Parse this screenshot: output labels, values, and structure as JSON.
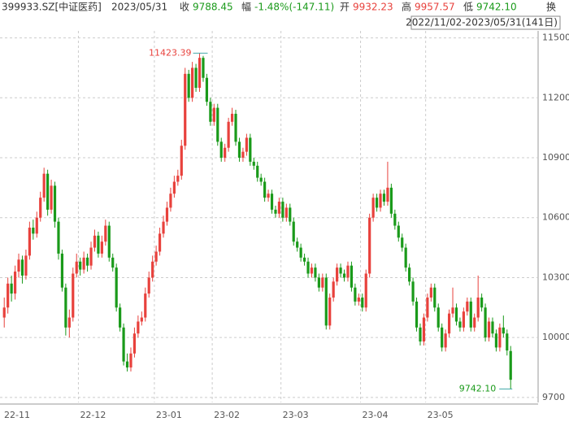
{
  "header": {
    "code": "399933.SZ[中证医药]",
    "date": "2023/05/31",
    "close_label": "收",
    "close": "9788.45",
    "change_label": "幅",
    "change": "-1.48%(-147.11)",
    "open_label": "开",
    "open": "9932.23",
    "high_label": "高",
    "high": "9957.57",
    "low_label": "低",
    "low": "9742.10",
    "turnover_label": "换",
    "range": "2022/11/02-2023/05/31(141日)"
  },
  "chart_data": {
    "type": "candlestick",
    "up_color": "#e8413c",
    "down_color": "#1a9a1a",
    "grid": true,
    "ylim": [
      9675,
      11535
    ],
    "yticks": [
      9700,
      10000,
      10300,
      10600,
      10900,
      11200,
      11500
    ],
    "annotations": {
      "max": "11423.39",
      "min": "9742.10"
    },
    "categories": [
      "22-11",
      null,
      null,
      null,
      null,
      null,
      null,
      null,
      null,
      null,
      null,
      null,
      null,
      null,
      null,
      null,
      null,
      null,
      null,
      null,
      null,
      "22-12",
      null,
      null,
      null,
      null,
      null,
      null,
      null,
      null,
      null,
      null,
      null,
      null,
      null,
      null,
      null,
      null,
      null,
      null,
      null,
      null,
      "23-01",
      null,
      null,
      null,
      null,
      null,
      null,
      null,
      null,
      null,
      null,
      null,
      null,
      null,
      null,
      null,
      "23-02",
      null,
      null,
      null,
      null,
      null,
      null,
      null,
      null,
      null,
      null,
      null,
      null,
      null,
      null,
      null,
      null,
      null,
      null,
      "23-03",
      null,
      null,
      null,
      null,
      null,
      null,
      null,
      null,
      null,
      null,
      null,
      null,
      null,
      null,
      null,
      null,
      null,
      null,
      null,
      null,
      null,
      "23-04",
      null,
      null,
      null,
      null,
      null,
      null,
      null,
      null,
      null,
      null,
      null,
      null,
      null,
      null,
      null,
      null,
      null,
      "23-05",
      null,
      null,
      null,
      null,
      null,
      null,
      null,
      null,
      null,
      null,
      null,
      null,
      null,
      null,
      null,
      null,
      null,
      null
    ],
    "ohlc": [
      [
        10100,
        10200,
        10050,
        10150
      ],
      [
        10150,
        10300,
        10120,
        10270
      ],
      [
        10270,
        10310,
        10180,
        10220
      ],
      [
        10220,
        10360,
        10190,
        10330
      ],
      [
        10330,
        10420,
        10300,
        10390
      ],
      [
        10390,
        10410,
        10270,
        10310
      ],
      [
        10310,
        10440,
        10290,
        10410
      ],
      [
        10410,
        10580,
        10390,
        10550
      ],
      [
        10550,
        10590,
        10490,
        10520
      ],
      [
        10520,
        10630,
        10500,
        10600
      ],
      [
        10600,
        10730,
        10580,
        10700
      ],
      [
        10700,
        10850,
        10680,
        10820
      ],
      [
        10820,
        10840,
        10610,
        10640
      ],
      [
        10640,
        10790,
        10620,
        10760
      ],
      [
        10760,
        10780,
        10550,
        10580
      ],
      [
        10580,
        10600,
        10390,
        10420
      ],
      [
        10420,
        10440,
        10230,
        10250
      ],
      [
        10250,
        10270,
        10010,
        10050
      ],
      [
        10050,
        10140,
        10000,
        10100
      ],
      [
        10100,
        10350,
        10080,
        10320
      ],
      [
        10320,
        10420,
        10300,
        10380
      ],
      [
        10380,
        10400,
        10310,
        10340
      ],
      [
        10340,
        10430,
        10320,
        10400
      ],
      [
        10400,
        10420,
        10330,
        10360
      ],
      [
        10360,
        10480,
        10340,
        10450
      ],
      [
        10450,
        10540,
        10430,
        10510
      ],
      [
        10510,
        10530,
        10400,
        10420
      ],
      [
        10420,
        10510,
        10400,
        10480
      ],
      [
        10480,
        10590,
        10460,
        10560
      ],
      [
        10560,
        10580,
        10380,
        10400
      ],
      [
        10400,
        10420,
        10330,
        10350
      ],
      [
        10350,
        10370,
        10130,
        10150
      ],
      [
        10150,
        10170,
        10030,
        10050
      ],
      [
        10050,
        10070,
        9860,
        9880
      ],
      [
        9880,
        9920,
        9830,
        9850
      ],
      [
        9850,
        9950,
        9830,
        9920
      ],
      [
        9920,
        10050,
        9900,
        10020
      ],
      [
        10020,
        10110,
        10000,
        10080
      ],
      [
        10080,
        10130,
        10060,
        10100
      ],
      [
        10100,
        10250,
        10080,
        10220
      ],
      [
        10220,
        10330,
        10200,
        10300
      ],
      [
        10300,
        10410,
        10280,
        10380
      ],
      [
        10380,
        10460,
        10360,
        10430
      ],
      [
        10430,
        10550,
        10410,
        10520
      ],
      [
        10520,
        10610,
        10500,
        10580
      ],
      [
        10580,
        10680,
        10560,
        10650
      ],
      [
        10650,
        10750,
        10630,
        10720
      ],
      [
        10720,
        10810,
        10700,
        10780
      ],
      [
        10780,
        10840,
        10760,
        10810
      ],
      [
        10810,
        10990,
        10790,
        10960
      ],
      [
        10960,
        11350,
        10940,
        11320
      ],
      [
        11320,
        11340,
        11180,
        11200
      ],
      [
        11200,
        11380,
        11180,
        11350
      ],
      [
        11350,
        11370,
        11230,
        11250
      ],
      [
        11250,
        11423.39,
        11230,
        11400
      ],
      [
        11400,
        11410,
        11280,
        11300
      ],
      [
        11300,
        11320,
        11160,
        11180
      ],
      [
        11180,
        11200,
        11060,
        11080
      ],
      [
        11080,
        11170,
        11060,
        11150
      ],
      [
        11150,
        11170,
        10960,
        10980
      ],
      [
        10980,
        11000,
        10880,
        10900
      ],
      [
        10900,
        10970,
        10880,
        10950
      ],
      [
        10950,
        11100,
        10930,
        11080
      ],
      [
        11080,
        11150,
        11060,
        11120
      ],
      [
        11120,
        11140,
        10960,
        10980
      ],
      [
        10980,
        11000,
        10880,
        10900
      ],
      [
        10900,
        10950,
        10880,
        10930
      ],
      [
        10930,
        11020,
        10910,
        11000
      ],
      [
        11000,
        11020,
        10860,
        10880
      ],
      [
        10880,
        10900,
        10840,
        10860
      ],
      [
        10860,
        10880,
        10780,
        10800
      ],
      [
        10800,
        10820,
        10760,
        10780
      ],
      [
        10780,
        10800,
        10680,
        10700
      ],
      [
        10700,
        10740,
        10680,
        10720
      ],
      [
        10720,
        10740,
        10620,
        10640
      ],
      [
        10640,
        10660,
        10600,
        10620
      ],
      [
        10620,
        10700,
        10600,
        10680
      ],
      [
        10680,
        10700,
        10580,
        10600
      ],
      [
        10600,
        10670,
        10580,
        10650
      ],
      [
        10650,
        10670,
        10560,
        10580
      ],
      [
        10580,
        10600,
        10460,
        10480
      ],
      [
        10480,
        10500,
        10430,
        10450
      ],
      [
        10450,
        10470,
        10380,
        10400
      ],
      [
        10400,
        10420,
        10360,
        10380
      ],
      [
        10380,
        10400,
        10300,
        10320
      ],
      [
        10320,
        10370,
        10300,
        10350
      ],
      [
        10350,
        10370,
        10280,
        10300
      ],
      [
        10300,
        10320,
        10230,
        10250
      ],
      [
        10250,
        10320,
        10230,
        10300
      ],
      [
        10300,
        10320,
        10040,
        10060
      ],
      [
        10060,
        10220,
        10040,
        10200
      ],
      [
        10200,
        10300,
        10180,
        10280
      ],
      [
        10280,
        10370,
        10260,
        10350
      ],
      [
        10350,
        10370,
        10300,
        10320
      ],
      [
        10320,
        10340,
        10280,
        10300
      ],
      [
        10300,
        10380,
        10280,
        10360
      ],
      [
        10360,
        10380,
        10230,
        10250
      ],
      [
        10250,
        10270,
        10160,
        10180
      ],
      [
        10180,
        10220,
        10160,
        10200
      ],
      [
        10200,
        10220,
        10130,
        10150
      ],
      [
        10150,
        10340,
        10130,
        10320
      ],
      [
        10320,
        10620,
        10300,
        10600
      ],
      [
        10600,
        10720,
        10580,
        10700
      ],
      [
        10700,
        10720,
        10630,
        10650
      ],
      [
        10650,
        10740,
        10630,
        10720
      ],
      [
        10720,
        10740,
        10660,
        10680
      ],
      [
        10680,
        10880,
        10660,
        10750
      ],
      [
        10750,
        10770,
        10600,
        10620
      ],
      [
        10620,
        10640,
        10540,
        10560
      ],
      [
        10560,
        10580,
        10480,
        10500
      ],
      [
        10500,
        10520,
        10430,
        10450
      ],
      [
        10450,
        10470,
        10330,
        10350
      ],
      [
        10350,
        10370,
        10260,
        10280
      ],
      [
        10280,
        10300,
        10160,
        10180
      ],
      [
        10180,
        10200,
        10030,
        10050
      ],
      [
        10050,
        10070,
        9960,
        9980
      ],
      [
        9980,
        10120,
        9960,
        10100
      ],
      [
        10100,
        10220,
        10080,
        10200
      ],
      [
        10200,
        10270,
        10180,
        10250
      ],
      [
        10250,
        10270,
        10130,
        10150
      ],
      [
        10150,
        10170,
        10030,
        10050
      ],
      [
        10050,
        10070,
        9930,
        9950
      ],
      [
        9950,
        10040,
        9930,
        10020
      ],
      [
        10020,
        10140,
        10000,
        10120
      ],
      [
        10120,
        10250,
        10100,
        10150
      ],
      [
        10150,
        10170,
        10060,
        10080
      ],
      [
        10080,
        10100,
        10030,
        10050
      ],
      [
        10050,
        10150,
        10030,
        10130
      ],
      [
        10130,
        10200,
        10110,
        10180
      ],
      [
        10180,
        10200,
        10030,
        10050
      ],
      [
        10050,
        10120,
        10030,
        10100
      ],
      [
        10100,
        10310,
        10080,
        10200
      ],
      [
        10200,
        10220,
        10130,
        10150
      ],
      [
        10150,
        10170,
        9980,
        10000
      ],
      [
        10000,
        10100,
        9980,
        10080
      ],
      [
        10080,
        10100,
        10000,
        10020
      ],
      [
        10020,
        10040,
        9930,
        9950
      ],
      [
        9950,
        10070,
        9930,
        10050
      ],
      [
        10050,
        10110,
        10000,
        10020
      ],
      [
        10020,
        10040,
        9910,
        9935
      ],
      [
        9932.23,
        9957.57,
        9742.1,
        9788.45
      ]
    ]
  }
}
